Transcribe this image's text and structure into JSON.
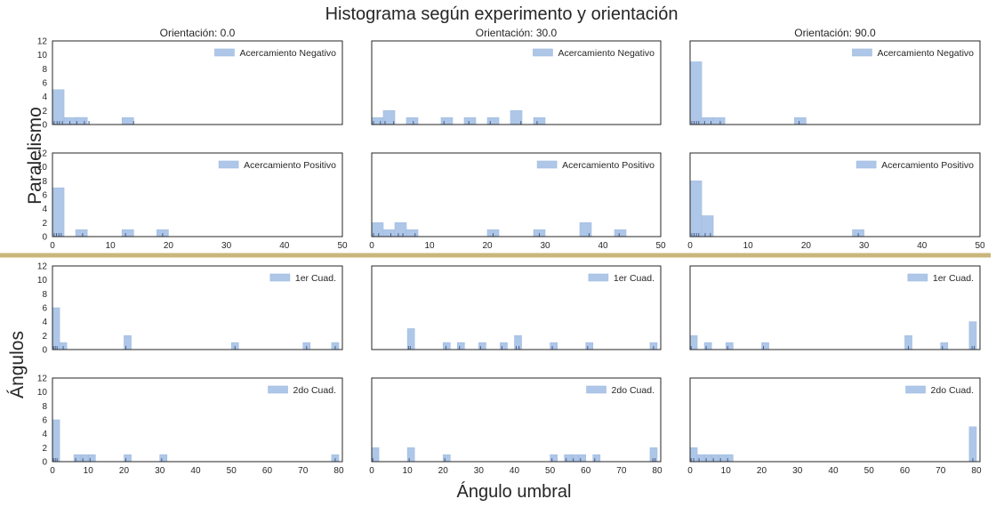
{
  "title": "Histograma según experimento y orientación",
  "xlabel": "Ángulo umbral",
  "divider_color": "#c9b67a",
  "bar_color": "#aec7e8",
  "bar_edge_color": "#9fbbe0",
  "rug_color": "#4c5f8a",
  "groups": [
    {
      "name": "Paralelismo",
      "xlim": [
        0,
        50
      ],
      "xticks": [
        0,
        10,
        20,
        30,
        40,
        50
      ],
      "bin_width": 2,
      "ylim": [
        0,
        12
      ],
      "yticks": [
        0,
        2,
        4,
        6,
        8,
        10,
        12
      ]
    },
    {
      "name": "Ángulos",
      "xlim": [
        0,
        81
      ],
      "xticks": [
        0,
        10,
        20,
        30,
        40,
        50,
        60,
        70,
        80
      ],
      "bin_width": 2,
      "ylim": [
        0,
        12
      ],
      "yticks": [
        0,
        2,
        4,
        6,
        8,
        10,
        12
      ]
    }
  ],
  "column_titles": [
    "Orientación: 0.0",
    "Orientación: 30.0",
    "Orientación: 90.0"
  ],
  "chart_data": {
    "type": "bar",
    "title": "Histograma según experimento y orientación",
    "xlabel": "Ángulo umbral",
    "panels": [
      {
        "group": 0,
        "row": 0,
        "col": 0,
        "legend": "Acercamiento Negativo",
        "bins": [
          {
            "x": 0,
            "count": 5
          },
          {
            "x": 2,
            "count": 1
          },
          {
            "x": 4,
            "count": 1
          },
          {
            "x": 4,
            "count": 0
          },
          {
            "x": 6,
            "count": 0
          },
          {
            "x": 4,
            "count": 1
          },
          {
            "x": 8,
            "count": 0
          },
          {
            "x": 12,
            "count": 1
          }
        ],
        "rug": [
          0.3,
          0.8,
          1.2,
          1.7,
          3,
          4.2,
          5.5,
          6.3,
          14
        ]
      },
      {
        "group": 0,
        "row": 0,
        "col": 1,
        "legend": "Acercamiento Negativo",
        "bins": [
          {
            "x": 0,
            "count": 1
          },
          {
            "x": 2,
            "count": 2
          },
          {
            "x": 6,
            "count": 1
          },
          {
            "x": 12,
            "count": 1
          },
          {
            "x": 16,
            "count": 1
          },
          {
            "x": 20,
            "count": 1
          },
          {
            "x": 24,
            "count": 2
          },
          {
            "x": 28,
            "count": 1
          }
        ],
        "rug": [
          0.3,
          1.5,
          2.3,
          3.8,
          7.2,
          12.5,
          16.8,
          20.5,
          25.8,
          28.6
        ]
      },
      {
        "group": 0,
        "row": 0,
        "col": 2,
        "legend": "Acercamiento Negativo",
        "bins": [
          {
            "x": 0,
            "count": 9
          },
          {
            "x": 2,
            "count": 1
          },
          {
            "x": 4,
            "count": 1
          },
          {
            "x": 18,
            "count": 1
          }
        ],
        "rug": [
          0.3,
          0.7,
          1.1,
          1.5,
          2.5,
          3.6,
          5.2,
          18.8
        ]
      },
      {
        "group": 0,
        "row": 1,
        "col": 0,
        "legend": "Acercamiento Positivo",
        "bins": [
          {
            "x": 0,
            "count": 7
          },
          {
            "x": 4,
            "count": 1
          },
          {
            "x": 12,
            "count": 1
          },
          {
            "x": 18,
            "count": 1
          }
        ],
        "rug": [
          0.3,
          0.7,
          1.1,
          1.5,
          5.2,
          12.6,
          19
        ]
      },
      {
        "group": 0,
        "row": 1,
        "col": 1,
        "legend": "Acercamiento Positivo",
        "bins": [
          {
            "x": 0,
            "count": 2
          },
          {
            "x": 2,
            "count": 1
          },
          {
            "x": 4,
            "count": 2
          },
          {
            "x": 6,
            "count": 1
          },
          {
            "x": 20,
            "count": 1
          },
          {
            "x": 28,
            "count": 1
          },
          {
            "x": 36,
            "count": 2
          },
          {
            "x": 42,
            "count": 1
          }
        ],
        "rug": [
          0.3,
          1.2,
          3.3,
          4.6,
          5.4,
          7.5,
          21,
          29,
          37.6,
          42.8
        ]
      },
      {
        "group": 0,
        "row": 1,
        "col": 2,
        "legend": "Acercamiento Positivo",
        "bins": [
          {
            "x": 0,
            "count": 8
          },
          {
            "x": 2,
            "count": 3
          },
          {
            "x": 28,
            "count": 1
          }
        ],
        "rug": [
          0.3,
          0.7,
          1.1,
          1.5,
          2.6,
          3.5,
          29
        ]
      },
      {
        "group": 1,
        "row": 0,
        "col": 0,
        "legend": "1er Cuad.",
        "bins": [
          {
            "x": 0,
            "count": 6
          },
          {
            "x": 2,
            "count": 1
          },
          {
            "x": 20,
            "count": 2
          },
          {
            "x": 50,
            "count": 1
          },
          {
            "x": 70,
            "count": 1
          },
          {
            "x": 78,
            "count": 1
          }
        ],
        "rug": [
          0.3,
          0.8,
          1.3,
          3,
          20.5,
          51,
          71,
          79
        ]
      },
      {
        "group": 1,
        "row": 0,
        "col": 1,
        "legend": "1er Cuad.",
        "bins": [
          {
            "x": 10,
            "count": 3
          },
          {
            "x": 20,
            "count": 1
          },
          {
            "x": 24,
            "count": 1
          },
          {
            "x": 30,
            "count": 1
          },
          {
            "x": 36,
            "count": 1
          },
          {
            "x": 40,
            "count": 2
          },
          {
            "x": 50,
            "count": 1
          },
          {
            "x": 60,
            "count": 1
          },
          {
            "x": 78,
            "count": 1
          }
        ],
        "rug": [
          10.3,
          10.8,
          20.8,
          24.6,
          30.5,
          36.5,
          40.5,
          41.3,
          50.6,
          60.5,
          79
        ]
      },
      {
        "group": 1,
        "row": 0,
        "col": 2,
        "legend": "1er Cuad.",
        "bins": [
          {
            "x": 0,
            "count": 2
          },
          {
            "x": 4,
            "count": 1
          },
          {
            "x": 10,
            "count": 1
          },
          {
            "x": 20,
            "count": 1
          },
          {
            "x": 60,
            "count": 2
          },
          {
            "x": 70,
            "count": 1
          },
          {
            "x": 78,
            "count": 4
          }
        ],
        "rug": [
          0.3,
          4.5,
          10.5,
          20.5,
          61,
          70.5,
          78.8,
          79.4
        ]
      },
      {
        "group": 1,
        "row": 1,
        "col": 0,
        "legend": "2do Cuad.",
        "bins": [
          {
            "x": 0,
            "count": 6
          },
          {
            "x": 6,
            "count": 1
          },
          {
            "x": 8,
            "count": 1
          },
          {
            "x": 10,
            "count": 1
          },
          {
            "x": 20,
            "count": 1
          },
          {
            "x": 30,
            "count": 1
          },
          {
            "x": 78,
            "count": 1
          }
        ],
        "rug": [
          0.3,
          0.8,
          1.3,
          6.5,
          8.5,
          10.5,
          20.5,
          30.5,
          79
        ]
      },
      {
        "group": 1,
        "row": 1,
        "col": 1,
        "legend": "2do Cuad.",
        "bins": [
          {
            "x": 0,
            "count": 2
          },
          {
            "x": 10,
            "count": 2
          },
          {
            "x": 20,
            "count": 1
          },
          {
            "x": 50,
            "count": 1
          },
          {
            "x": 54,
            "count": 1
          },
          {
            "x": 56,
            "count": 1
          },
          {
            "x": 58,
            "count": 1
          },
          {
            "x": 62,
            "count": 1
          },
          {
            "x": 78,
            "count": 2
          }
        ],
        "rug": [
          0.3,
          10.5,
          20.5,
          50.5,
          54.5,
          56.5,
          58.5,
          62.5,
          78.8,
          79.4
        ]
      },
      {
        "group": 1,
        "row": 1,
        "col": 2,
        "legend": "2do Cuad.",
        "bins": [
          {
            "x": 0,
            "count": 2
          },
          {
            "x": 2,
            "count": 1
          },
          {
            "x": 4,
            "count": 1
          },
          {
            "x": 6,
            "count": 1
          },
          {
            "x": 8,
            "count": 1
          },
          {
            "x": 10,
            "count": 1
          },
          {
            "x": 78,
            "count": 5
          }
        ],
        "rug": [
          0.3,
          1,
          2.5,
          4.5,
          6.5,
          8.5,
          10.5,
          79
        ]
      }
    ]
  }
}
